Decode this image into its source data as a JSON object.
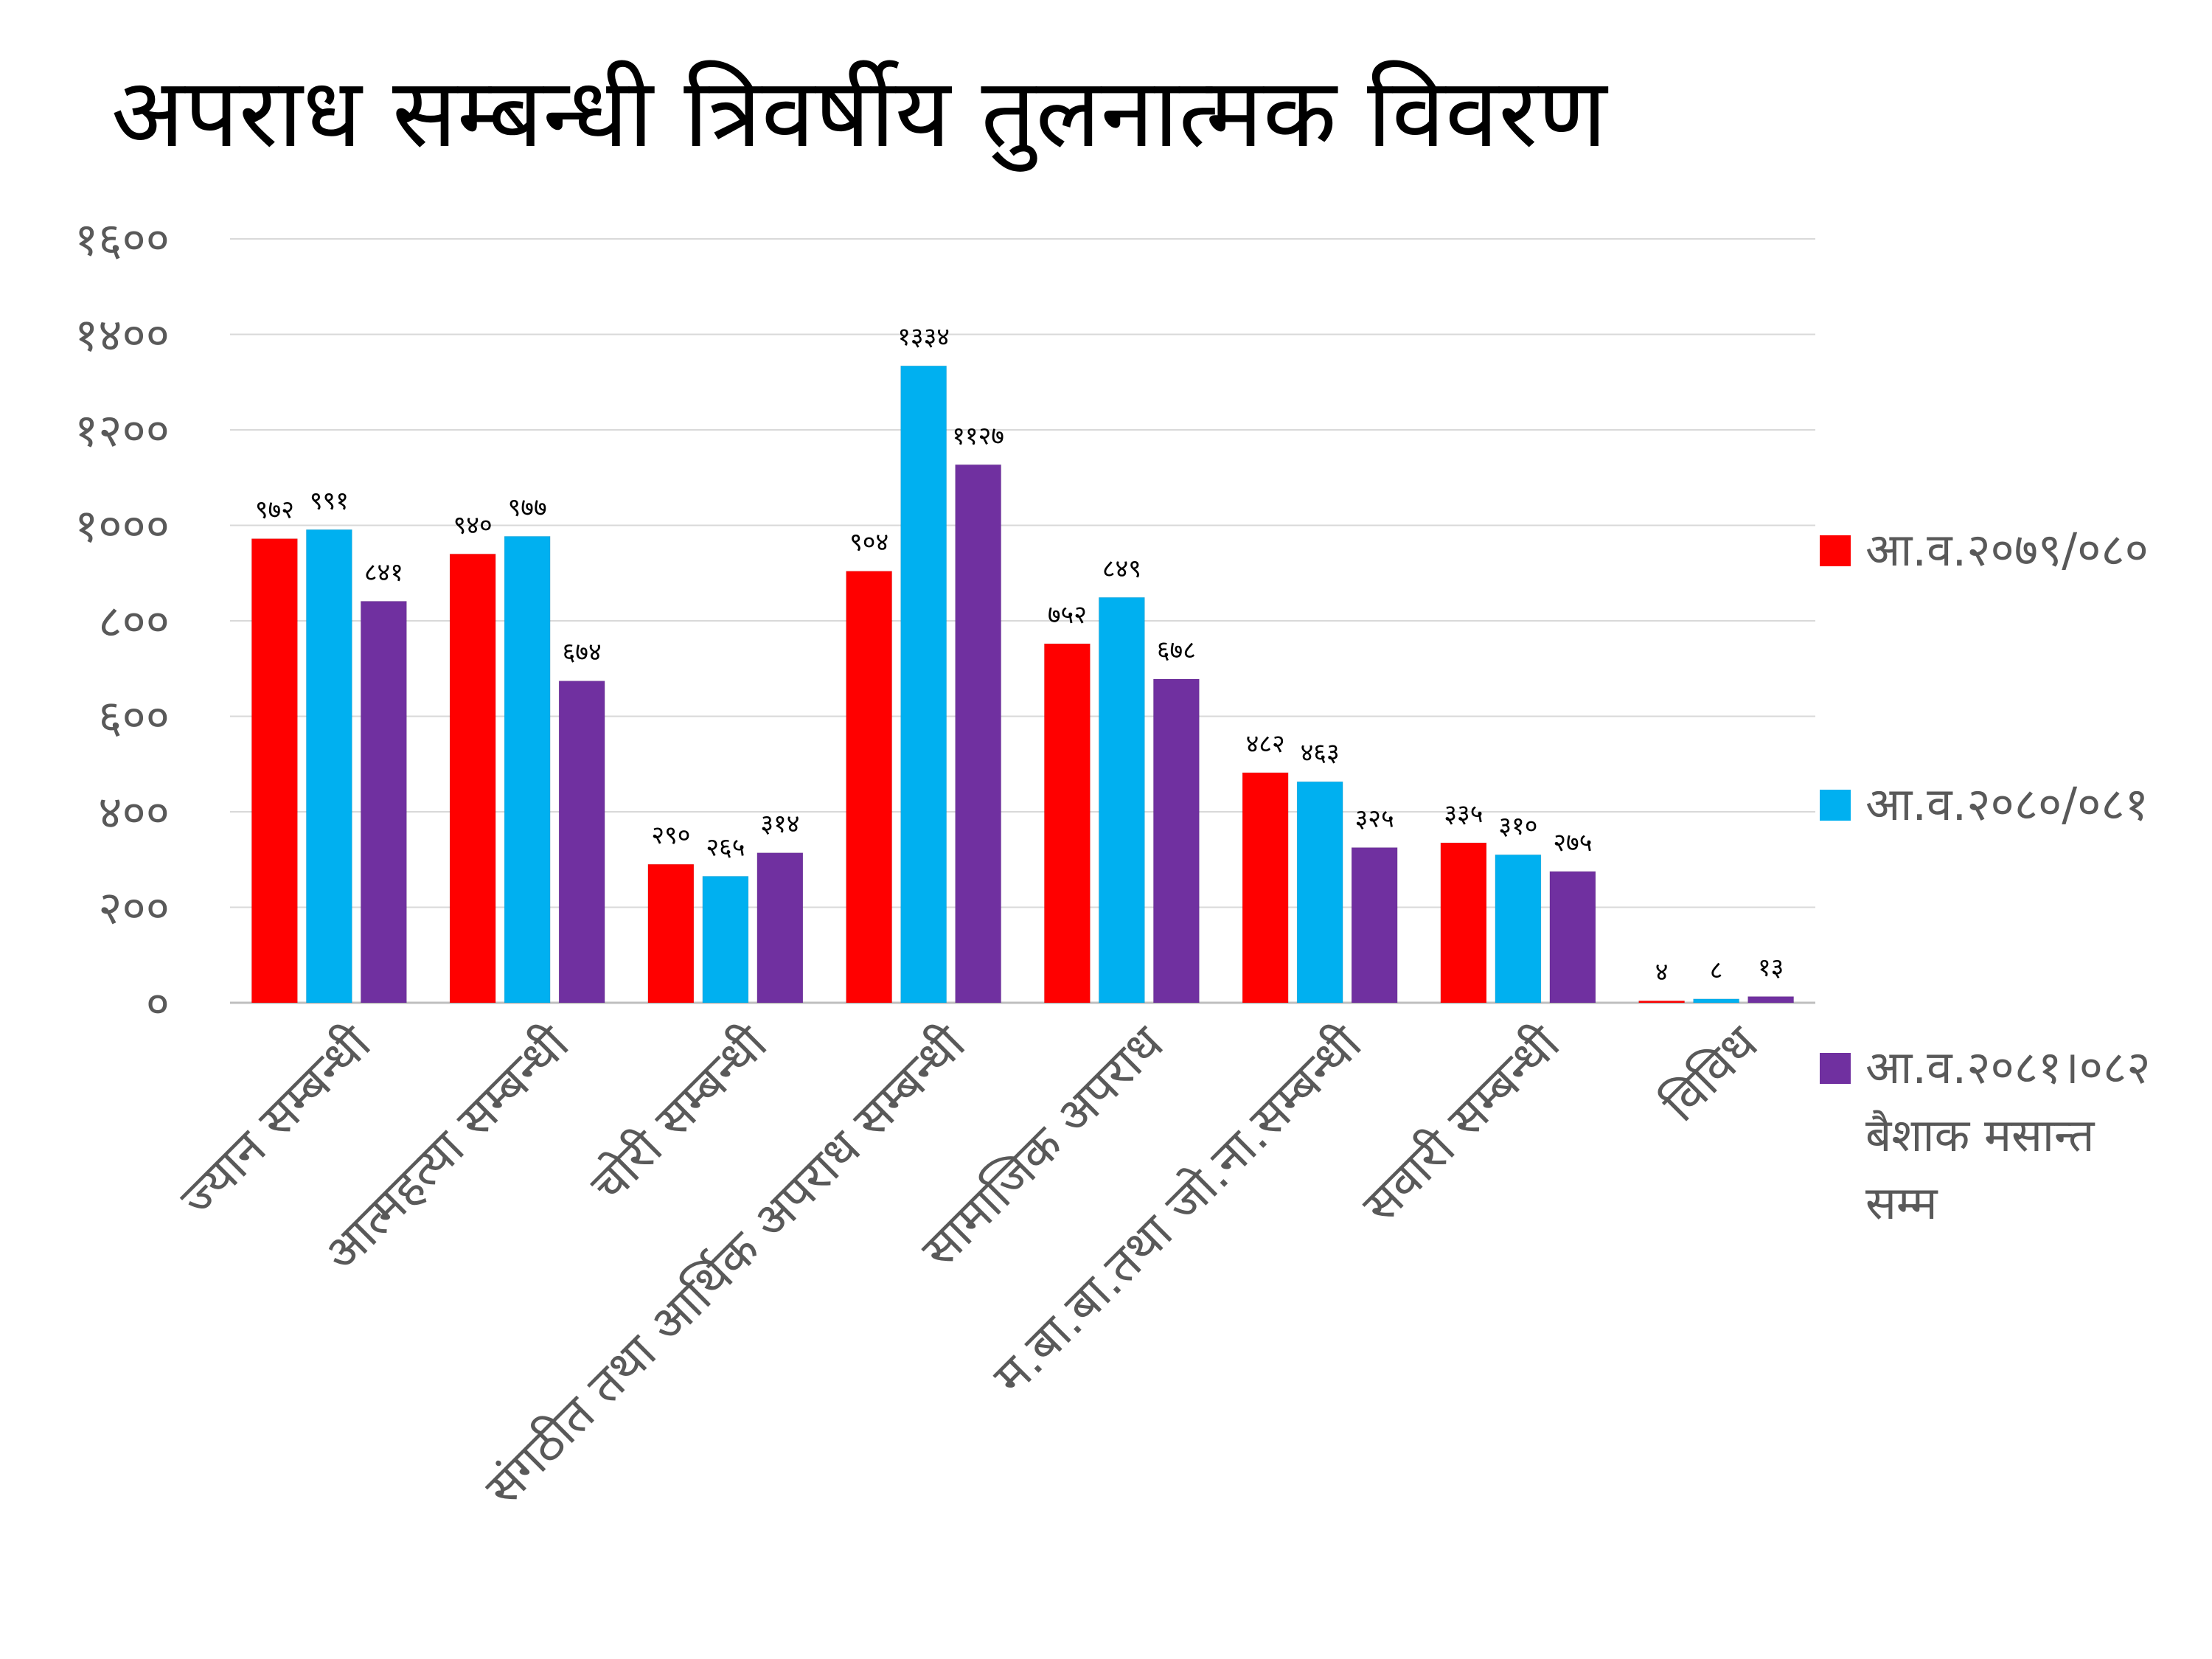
{
  "chart_data": {
    "type": "bar",
    "title": "अपराध सम्बन्धी त्रिवर्षीय तुलनात्मक विवरण",
    "categories": [
      "ज्यान सम्बन्धी",
      "आत्महत्या सम्बन्धी",
      "चोरी सम्बन्धी",
      "संगठीत तथा आर्थिक अपराध सम्बन्धी",
      "सामाजिक अपराध",
      "म.बा.बा.तथा जो.ना.सम्बन्धी",
      "सवारी सम्बन्धी",
      "विविध"
    ],
    "series": [
      {
        "name": "आ.व.२०७९/०८०",
        "color": "#ff0000",
        "values": [
          972,
          940,
          290,
          904,
          752,
          482,
          335,
          4
        ],
        "labels": [
          "९७२",
          "९४०",
          "२९०",
          "९०४",
          "७५२",
          "४८२",
          "३३५",
          "४"
        ]
      },
      {
        "name": "आ.व.२०८०/०८१",
        "color": "#00b0f0",
        "values": [
          991,
          977,
          265,
          1334,
          849,
          463,
          310,
          8
        ],
        "labels": [
          "९९१",
          "९७७",
          "२६५",
          "१३३४",
          "८४९",
          "४६३",
          "३१०",
          "८"
        ]
      },
      {
        "name": "आ.व.२०८१।०८२ बैशाक मसान्त सम्म",
        "legend_lines": [
          "आ.व.२०८१।०८२",
          "बैशाक  मसान्त",
          "सम्म"
        ],
        "color": "#7030a0",
        "values": [
          841,
          674,
          314,
          1127,
          678,
          325,
          275,
          13
        ],
        "labels": [
          "८४१",
          "६७४",
          "३१४",
          "११२७",
          "६७८",
          "३२५",
          "२७५",
          "१३"
        ]
      }
    ],
    "ylim": [
      0,
      1600
    ],
    "y_ticks": [
      0,
      200,
      400,
      600,
      800,
      1000,
      1200,
      1400,
      1600
    ],
    "y_tick_labels": [
      "०",
      "२००",
      "४००",
      "६००",
      "८००",
      "१०००",
      "१२००",
      "१४००",
      "१६००"
    ],
    "grid": true,
    "legend_position": "right"
  }
}
